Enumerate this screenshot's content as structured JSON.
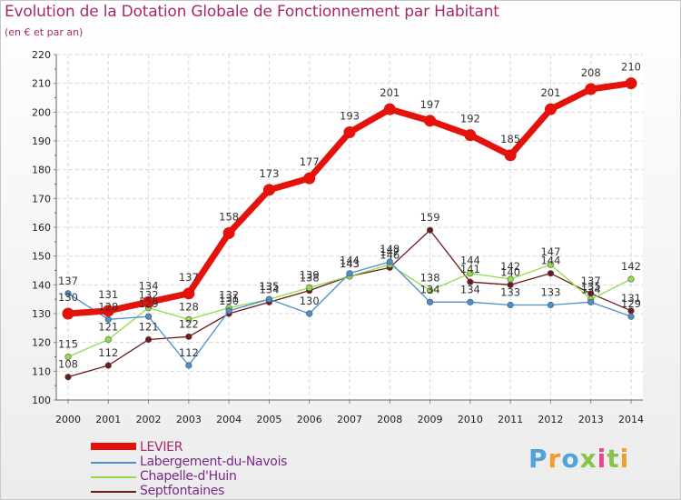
{
  "header": {
    "title": "Evolution de la Dotation Globale de Fonctionnement par Habitant",
    "subtitle": "(en € et par an)"
  },
  "brand": {
    "text": "Proxiti"
  },
  "chart_data": {
    "type": "line",
    "title": "Evolution de la Dotation Globale de Fonctionnement par Habitant",
    "subtitle": "(en € et par an)",
    "xlabel": "",
    "ylabel": "",
    "x": [
      2000,
      2001,
      2002,
      2003,
      2004,
      2005,
      2006,
      2007,
      2008,
      2009,
      2010,
      2011,
      2012,
      2013,
      2014
    ],
    "ylim": [
      100,
      220
    ],
    "yticks": [
      100,
      110,
      120,
      130,
      140,
      150,
      160,
      170,
      180,
      190,
      200,
      210,
      220
    ],
    "grid": true,
    "legend_position": "bottom-left",
    "series": [
      {
        "name": "LEVIER",
        "color": "#e3120b",
        "values": [
          130,
          131,
          134,
          137,
          158,
          173,
          177,
          193,
          201,
          197,
          192,
          185,
          201,
          208,
          210
        ],
        "labels": [
          "130",
          "131",
          "134",
          "137",
          "158",
          "173",
          "177",
          "193",
          "201",
          "197",
          "192",
          "185",
          "201",
          "208",
          "210"
        ]
      },
      {
        "name": "Labergement-du-Navois",
        "color": "#4b8fcc",
        "values": [
          137,
          128,
          129,
          112,
          131,
          135,
          130,
          144,
          148,
          134,
          134,
          133,
          133,
          134,
          129
        ],
        "labels": [
          "137",
          "128",
          "129",
          "112",
          "131",
          "135",
          "130",
          "144",
          "148",
          "134",
          "134",
          "133",
          "133",
          "134",
          "129"
        ]
      },
      {
        "name": "Chapelle-d'Huin",
        "color": "#8fdc4a",
        "values": [
          115,
          121,
          132,
          128,
          132,
          135,
          139,
          143,
          147,
          138,
          144,
          142,
          147,
          135,
          142
        ],
        "labels": [
          "115",
          "121",
          "132",
          "128",
          "132",
          "135",
          "139",
          "143",
          "147",
          "138",
          "144",
          "142",
          "147",
          "135",
          "142"
        ]
      },
      {
        "name": "Septfontaines",
        "color": "#6e1a1a",
        "values": [
          108,
          112,
          121,
          122,
          130,
          134,
          138,
          143,
          146,
          159,
          141,
          140,
          144,
          137,
          131
        ],
        "labels": [
          "108",
          "112",
          "121",
          "122",
          "130",
          "134",
          "138",
          "143",
          "146",
          "159",
          "141",
          "140",
          "144",
          "137",
          "131"
        ]
      }
    ]
  }
}
